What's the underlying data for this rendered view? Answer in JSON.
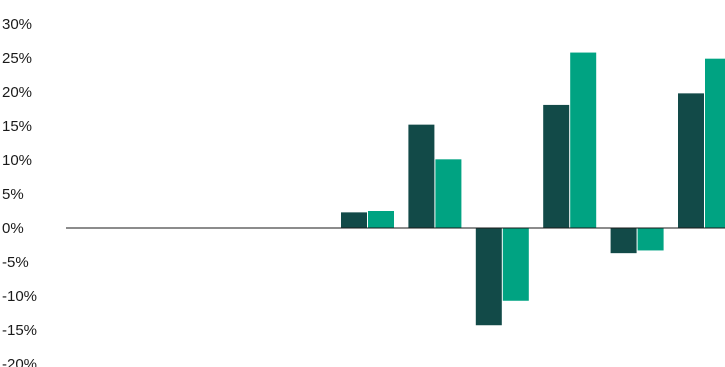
{
  "chart_data": {
    "type": "bar",
    "title": "",
    "xlabel": "",
    "ylabel": "",
    "ylim": [
      -20,
      30
    ],
    "yticks": [
      30,
      25,
      20,
      15,
      10,
      5,
      0,
      -5,
      -10,
      -15,
      -20
    ],
    "ytick_labels": [
      "30%",
      "25%",
      "20%",
      "15%",
      "10%",
      "5%",
      "0%",
      "-5%",
      "-10%",
      "-15%",
      "-20%"
    ],
    "categories": [
      "",
      "",
      "",
      "",
      "",
      "",
      "",
      "",
      "",
      ""
    ],
    "grid": false,
    "legend": "none",
    "series": [
      {
        "color": "#124a48",
        "values": [
          null,
          null,
          null,
          null,
          2.3,
          15.2,
          -14.3,
          18.1,
          -3.7,
          19.8
        ]
      },
      {
        "color": "#00a382",
        "values": [
          null,
          null,
          null,
          null,
          2.5,
          10.1,
          -10.7,
          25.8,
          -3.3,
          24.9
        ]
      }
    ]
  }
}
